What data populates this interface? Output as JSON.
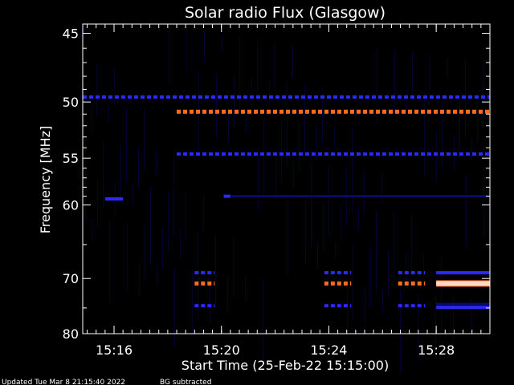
{
  "chart_data": {
    "type": "heatmap",
    "title": "Solar radio Flux (Glasgow)",
    "xlabel": "Start Time (25-Feb-22 15:15:00)",
    "ylabel": "Frequency [MHz]",
    "xlim": [
      "15:14:50",
      "15:30:00"
    ],
    "ylim": [
      80,
      44.4
    ],
    "x_ticks": [
      "15:16",
      "15:20",
      "15:24",
      "15:28"
    ],
    "y_ticks": [
      45,
      50,
      55,
      60,
      70,
      80
    ],
    "y_scale": "reciprocal",
    "grid": false,
    "colors": {
      "background": "#000000",
      "low": "#0a0a6e",
      "medium": "#2a2aff",
      "high": "#ff6a20",
      "peak": "#ffd8c0"
    },
    "features": [
      {
        "name": "dashed line",
        "freq_mhz": 49.6,
        "start": "15:14:50",
        "end": "15:30:00",
        "level": "medium",
        "dashed": true
      },
      {
        "name": "dashed line",
        "freq_mhz": 50.8,
        "start": "15:18:20",
        "end": "15:30:00",
        "level": "high",
        "dashed": true
      },
      {
        "name": "dashed line",
        "freq_mhz": 54.6,
        "start": "15:18:20",
        "end": "15:30:00",
        "level": "medium",
        "dashed": true
      },
      {
        "name": "band",
        "freq_mhz": 59.3,
        "start": "15:15:40",
        "end": "15:16:20",
        "level": "medium",
        "dashed": false
      },
      {
        "name": "band",
        "freq_mhz": 59.0,
        "start": "15:20:05",
        "end": "15:20:20",
        "level": "medium",
        "dashed": false
      },
      {
        "name": "band",
        "freq_mhz": 59.0,
        "start": "15:20:20",
        "end": "15:30:00",
        "level": "low",
        "dashed": false
      },
      {
        "name": "burst",
        "freq_mhz": 70.8,
        "start": "15:19:00",
        "end": "15:19:45",
        "level": "high",
        "dashed": true
      },
      {
        "name": "burst",
        "freq_mhz": 70.8,
        "start": "15:23:50",
        "end": "15:24:50",
        "level": "high",
        "dashed": true
      },
      {
        "name": "burst",
        "freq_mhz": 70.8,
        "start": "15:26:35",
        "end": "15:27:35",
        "level": "high",
        "dashed": true
      },
      {
        "name": "burst",
        "freq_mhz": 70.8,
        "start": "15:28:00",
        "end": "15:30:00",
        "level": "peak",
        "dashed": false
      },
      {
        "name": "side band",
        "freq_mhz": 69.1,
        "start": "15:19:00",
        "end": "15:19:45",
        "level": "medium",
        "dashed": true
      },
      {
        "name": "side band",
        "freq_mhz": 74.6,
        "start": "15:19:00",
        "end": "15:19:45",
        "level": "medium",
        "dashed": true
      },
      {
        "name": "side band",
        "freq_mhz": 69.1,
        "start": "15:23:50",
        "end": "15:24:50",
        "level": "medium",
        "dashed": true
      },
      {
        "name": "side band",
        "freq_mhz": 74.6,
        "start": "15:23:50",
        "end": "15:24:50",
        "level": "medium",
        "dashed": true
      },
      {
        "name": "side band",
        "freq_mhz": 69.1,
        "start": "15:26:35",
        "end": "15:27:35",
        "level": "medium",
        "dashed": true
      },
      {
        "name": "side band",
        "freq_mhz": 74.6,
        "start": "15:26:35",
        "end": "15:27:35",
        "level": "medium",
        "dashed": true
      },
      {
        "name": "side band",
        "freq_mhz": 69.1,
        "start": "15:28:00",
        "end": "15:30:00",
        "level": "medium",
        "dashed": false
      },
      {
        "name": "side band",
        "freq_mhz": 74.3,
        "start": "15:28:00",
        "end": "15:30:00",
        "level": "low",
        "dashed": false
      },
      {
        "name": "side band",
        "freq_mhz": 74.9,
        "start": "15:28:00",
        "end": "15:30:00",
        "level": "medium",
        "dashed": false
      }
    ]
  },
  "footer": {
    "updated": "Updated Tue Mar  8 21:15:40 2022",
    "note": "BG subtracted"
  }
}
